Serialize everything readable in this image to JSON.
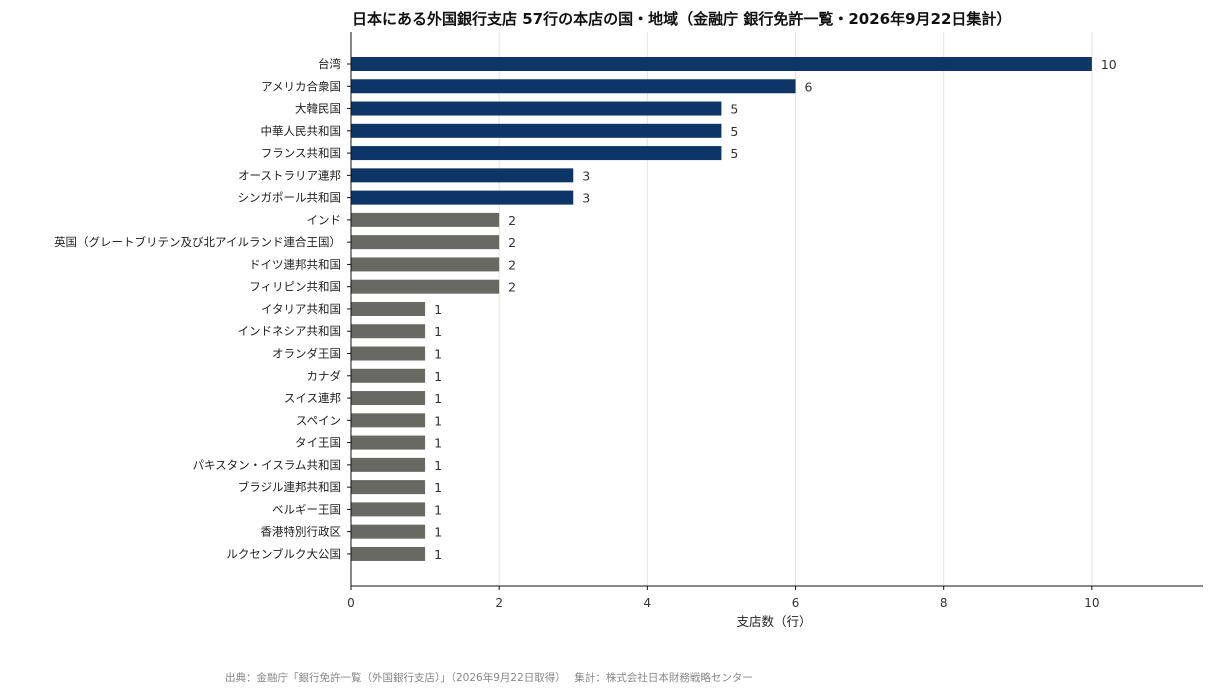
{
  "chart_data": {
    "type": "bar",
    "orientation": "horizontal",
    "title": "日本にある外国銀行支店 57行の本店の国・地域（金融庁 銀行免許一覧・2026年9月22日集計）",
    "xlabel": "支店数（行）",
    "ylabel": "",
    "xlim": [
      0,
      11.5
    ],
    "xticks": [
      0,
      2,
      4,
      6,
      8,
      10
    ],
    "grid": "vertical",
    "categories": [
      "台湾",
      "アメリカ合衆国",
      "大韓民国",
      "中華人民共和国",
      "フランス共和国",
      "オーストラリア連邦",
      "シンガポール共和国",
      "インド",
      "英国（グレートブリテン及び北アイルランド連合王国）",
      "ドイツ連邦共和国",
      "フィリピン共和国",
      "イタリア共和国",
      "インドネシア共和国",
      "オランダ王国",
      "カナダ",
      "スイス連邦",
      "スペイン",
      "タイ王国",
      "パキスタン・イスラム共和国",
      "ブラジル連邦共和国",
      "ベルギー王国",
      "香港特別行政区",
      "ルクセンブルク大公国"
    ],
    "values": [
      10,
      6,
      5,
      5,
      5,
      3,
      3,
      2,
      2,
      2,
      2,
      1,
      1,
      1,
      1,
      1,
      1,
      1,
      1,
      1,
      1,
      1,
      1
    ],
    "value_labels": [
      "10",
      "6",
      "5",
      "5",
      "5",
      "3",
      "3",
      "2",
      "2",
      "2",
      "2",
      "1",
      "1",
      "1",
      "1",
      "1",
      "1",
      "1",
      "1",
      "1",
      "1",
      "1",
      "1"
    ],
    "colors": {
      "highlight": "#0d3566",
      "other": "#696963"
    },
    "highlighted_count": 7,
    "source": "出典：金融庁「銀行免許一覧（外国銀行支店）」（2026年9月22日取得）　 集計：株式会社日本財務戦略センター"
  }
}
